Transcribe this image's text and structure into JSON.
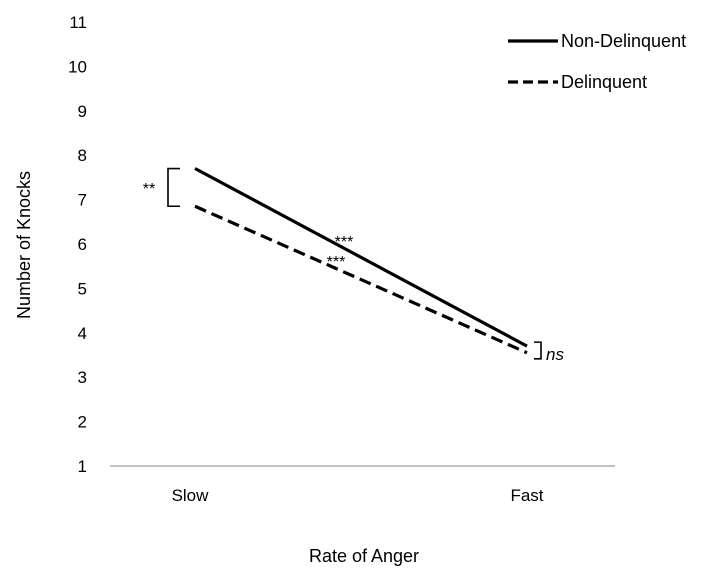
{
  "chart_data": {
    "type": "line",
    "categories": [
      "Slow",
      "Fast"
    ],
    "series": [
      {
        "name": "Non-Delinquent",
        "values": [
          7.7,
          3.7
        ],
        "style": "solid"
      },
      {
        "name": "Delinquent",
        "values": [
          6.85,
          3.55
        ],
        "style": "dashed"
      }
    ],
    "title": "",
    "xlabel": "Rate of Anger",
    "ylabel": "Number of Knocks",
    "ylim": [
      1,
      11
    ],
    "yticks": [
      "1",
      "2",
      "3",
      "4",
      "5",
      "6",
      "7",
      "8",
      "9",
      "10",
      "11"
    ],
    "grid": false,
    "legend_position": "top-right",
    "colors": {
      "line": "#000000",
      "axis": "#9a9a9a"
    },
    "annotations": {
      "slow_difference": "**",
      "non_delinquent_slope": "***",
      "delinquent_slope": "***",
      "fast_difference": "ns"
    }
  }
}
